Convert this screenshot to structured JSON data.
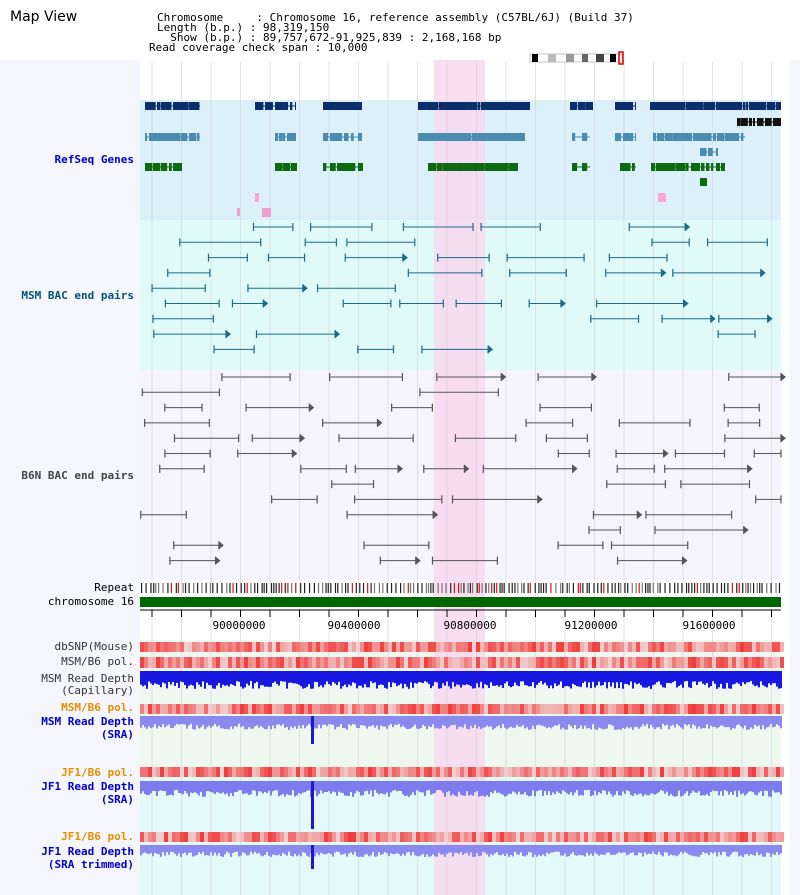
{
  "app": {
    "title": "Map View"
  },
  "header": {
    "chromosome_line": "Chromosome     : Chromosome 16, reference assembly (C57BL/6J) (Build 37)",
    "length_line": "Length (b.p.) : 98,319,150",
    "show_line": "  Show (b.p.) : 89,757,672-91,925,839 : 2,168,168 bp",
    "coverage_line": "Read coverage check span : 10,000"
  },
  "tracks": {
    "refseq": {
      "label": "RefSeq Genes",
      "color": "#0000cc"
    },
    "msm_bac": {
      "label": "MSM BAC end pairs",
      "color": "#005577"
    },
    "b6n_bac": {
      "label": "B6N BAC end pairs",
      "color": "#444444"
    },
    "repeat": {
      "label": "Repeat"
    },
    "chromosome": {
      "label": "chromosome 16"
    },
    "dbsnp": {
      "label": "dbSNP(Mouse)"
    },
    "msm_b6_pol": {
      "label": "MSM/B6 pol."
    },
    "msm_depth_cap": {
      "label1": "MSM Read Depth",
      "label2": "(Capillary)"
    },
    "msm_b6_pol_sra": {
      "label": "MSM/B6 pol."
    },
    "msm_depth_sra": {
      "label1": "MSM Read Depth",
      "label2": "(SRA)"
    },
    "jf1_b6_pol": {
      "label": "JF1/B6 pol."
    },
    "jf1_depth_sra": {
      "label1": "JF1 Read Depth",
      "label2": "(SRA)"
    },
    "jf1_b6_pol_trim": {
      "label": "JF1/B6 pol."
    },
    "jf1_depth_trim": {
      "label1": "JF1 Read Depth",
      "label2": "(SRA trimmed)"
    }
  },
  "axis": {
    "ticks": [
      "90000000",
      "90400000",
      "90800000",
      "91200000",
      "91600000"
    ]
  },
  "colors": {
    "refseq_bg": "#dcf0fa",
    "msm_bg": "#e0fafa",
    "b6n_bg": "#f4f4fa",
    "highlight": "#f8d8f0",
    "chromosome_bar": "#006600",
    "depth_cap": "#1010e0",
    "depth_sra": "#8888ee",
    "pol": "#ee4444"
  }
}
